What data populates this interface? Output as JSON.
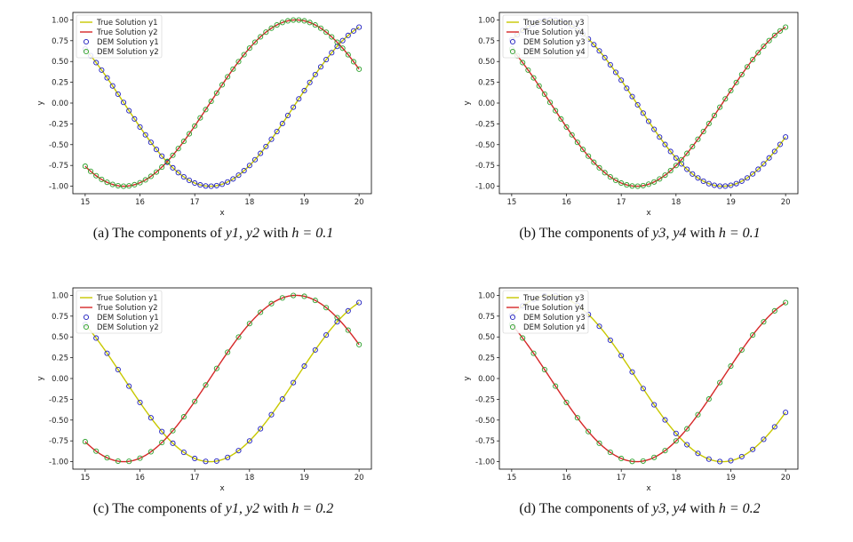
{
  "chart_data": [
    {
      "type": "line",
      "caption": "(a) The components of y1, y2 with h = 0.1",
      "caption_prefix": "(a) The components of ",
      "caption_vars": "y1, y2",
      "caption_mid": " with ",
      "caption_eq": "h = 0.1",
      "xlabel": "x",
      "ylabel": "y",
      "xlim": [
        15,
        20
      ],
      "ylim": [
        -1.0,
        1.0
      ],
      "xticks": [
        "15",
        "16",
        "17",
        "18",
        "19",
        "20"
      ],
      "yticks": [
        "-1.00",
        "-0.75",
        "-0.50",
        "-0.25",
        "0.00",
        "0.25",
        "0.50",
        "0.75",
        "1.00"
      ],
      "legend_position": "upper-left",
      "step": 0.1,
      "series": [
        {
          "name": "True Solution y1",
          "kind": "line",
          "color": "#c8c800",
          "func": "sin"
        },
        {
          "name": "True Solution y2",
          "kind": "line",
          "color": "#d62728",
          "func": "cos"
        },
        {
          "name": "DEM Solution y1",
          "kind": "markers",
          "color": "#1f1fbf",
          "func": "sin"
        },
        {
          "name": "DEM Solution y2",
          "kind": "markers",
          "color": "#2ca02c",
          "func": "cos"
        }
      ]
    },
    {
      "type": "line",
      "caption": "(b) The components of y3, y4 with h = 0.1",
      "caption_prefix": "(b) The components of ",
      "caption_vars": "y3, y4",
      "caption_mid": " with ",
      "caption_eq": "h = 0.1",
      "xlabel": "x",
      "ylabel": "y",
      "xlim": [
        15,
        20
      ],
      "ylim": [
        -1.0,
        1.0
      ],
      "xticks": [
        "15",
        "16",
        "17",
        "18",
        "19",
        "20"
      ],
      "yticks": [
        "-1.00",
        "-0.75",
        "-0.50",
        "-0.25",
        "0.00",
        "0.25",
        "0.50",
        "0.75",
        "1.00"
      ],
      "legend_position": "upper-left",
      "step": 0.1,
      "series": [
        {
          "name": "True Solution y3",
          "kind": "line",
          "color": "#c8c800",
          "func": "-cos"
        },
        {
          "name": "True Solution y4",
          "kind": "line",
          "color": "#d62728",
          "func": "sin"
        },
        {
          "name": "DEM Solution y3",
          "kind": "markers",
          "color": "#1f1fbf",
          "func": "-cos"
        },
        {
          "name": "DEM Solution y4",
          "kind": "markers",
          "color": "#2ca02c",
          "func": "sin"
        }
      ]
    },
    {
      "type": "line",
      "caption": "(c) The components of y1, y2 with h = 0.2",
      "caption_prefix": "(c) The components of ",
      "caption_vars": "y1, y2",
      "caption_mid": " with ",
      "caption_eq": "h = 0.2",
      "xlabel": "x",
      "ylabel": "y",
      "xlim": [
        15,
        20
      ],
      "ylim": [
        -1.0,
        1.0
      ],
      "xticks": [
        "15",
        "16",
        "17",
        "18",
        "19",
        "20"
      ],
      "yticks": [
        "-1.00",
        "-0.75",
        "-0.50",
        "-0.25",
        "0.00",
        "0.25",
        "0.50",
        "0.75",
        "1.00"
      ],
      "legend_position": "upper-left",
      "step": 0.2,
      "series": [
        {
          "name": "True Solution y1",
          "kind": "line",
          "color": "#c8c800",
          "func": "sin"
        },
        {
          "name": "True Solution y2",
          "kind": "line",
          "color": "#d62728",
          "func": "cos"
        },
        {
          "name": "DEM Solution y1",
          "kind": "markers",
          "color": "#1f1fbf",
          "func": "sin"
        },
        {
          "name": "DEM Solution y2",
          "kind": "markers",
          "color": "#2ca02c",
          "func": "cos"
        }
      ]
    },
    {
      "type": "line",
      "caption": "(d) The components of y3, y4 with h = 0.2",
      "caption_prefix": "(d) The components of ",
      "caption_vars": "y3, y4",
      "caption_mid": " with ",
      "caption_eq": "h = 0.2",
      "xlabel": "x",
      "ylabel": "y",
      "xlim": [
        15,
        20
      ],
      "ylim": [
        -1.0,
        1.0
      ],
      "xticks": [
        "15",
        "16",
        "17",
        "18",
        "19",
        "20"
      ],
      "yticks": [
        "-1.00",
        "-0.75",
        "-0.50",
        "-0.25",
        "0.00",
        "0.25",
        "0.50",
        "0.75",
        "1.00"
      ],
      "legend_position": "upper-left",
      "step": 0.2,
      "series": [
        {
          "name": "True Solution y3",
          "kind": "line",
          "color": "#c8c800",
          "func": "-cos"
        },
        {
          "name": "True Solution y4",
          "kind": "line",
          "color": "#d62728",
          "func": "sin"
        },
        {
          "name": "DEM Solution y3",
          "kind": "markers",
          "color": "#1f1fbf",
          "func": "-cos"
        },
        {
          "name": "DEM Solution y4",
          "kind": "markers",
          "color": "#2ca02c",
          "func": "sin"
        }
      ]
    }
  ]
}
